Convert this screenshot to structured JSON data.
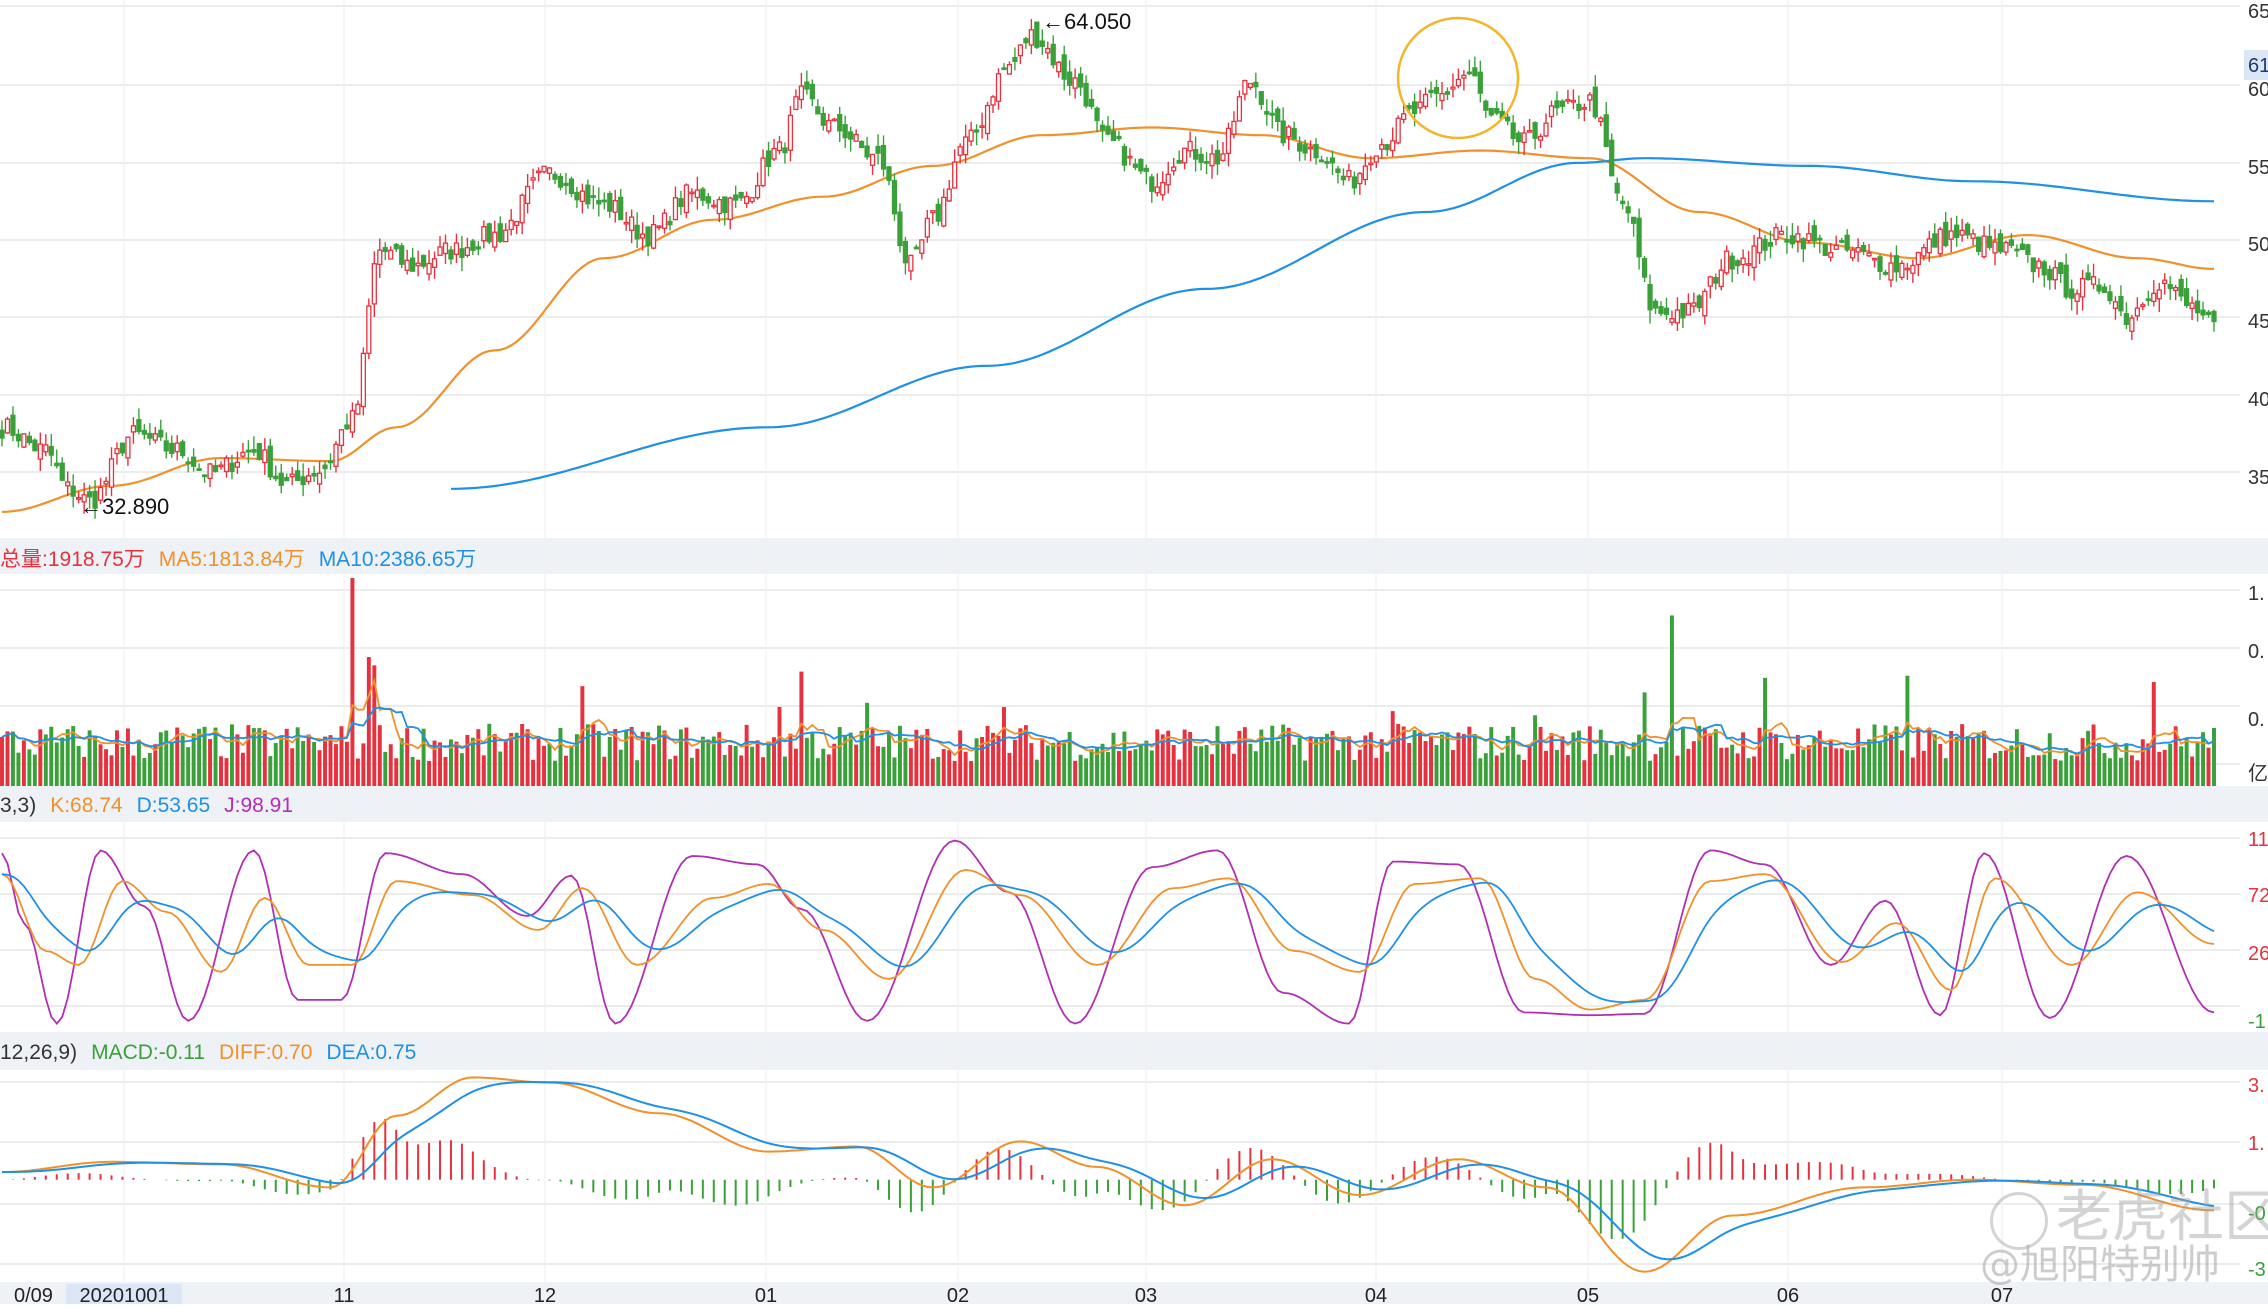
{
  "colors": {
    "up": "#e5323e",
    "down": "#3aa13a",
    "ma_orange": "#f0912b",
    "ma_blue": "#1e90e6",
    "j_purple": "#b12fb3",
    "grid": "#e6e6e6",
    "band": "#eef1f5",
    "circle": "#f3b52a",
    "date_highlight": "#dbe7f7"
  },
  "price_panel": {
    "high_label": "←64.050",
    "low_label": "←32.890",
    "axis_ticks": [
      "65",
      "60",
      "55",
      "50",
      "45",
      "40",
      "35"
    ],
    "current_price_tag": "61"
  },
  "volume_panel": {
    "legend": [
      {
        "text": "总量:1918.75万",
        "color": "#e5323e"
      },
      {
        "text": "MA5:1813.84万",
        "color": "#f0912b"
      },
      {
        "text": "MA10:2386.65万",
        "color": "#1e90e6"
      }
    ],
    "axis_ticks": [
      "1.",
      "0.",
      "0.",
      "亿"
    ]
  },
  "kdj_panel": {
    "legend": [
      {
        "text": "3,3)",
        "color": "#333333"
      },
      {
        "text": "K:68.74",
        "color": "#f0912b"
      },
      {
        "text": "D:53.65",
        "color": "#1e90e6"
      },
      {
        "text": "J:98.91",
        "color": "#b12fb3"
      }
    ],
    "axis_ticks": [
      "11",
      "72",
      "26",
      "-1"
    ]
  },
  "macd_panel": {
    "legend": [
      {
        "text": "12,26,9)",
        "color": "#333333"
      },
      {
        "text": "MACD:-0.11",
        "color": "#3aa13a"
      },
      {
        "text": "DIFF:0.70",
        "color": "#f0912b"
      },
      {
        "text": "DEA:0.75",
        "color": "#1e90e6"
      }
    ],
    "axis_ticks": [
      "3.",
      "1.",
      "-0",
      "-3"
    ]
  },
  "x_axis": {
    "labels": [
      "0/09",
      "20201001",
      "11",
      "12",
      "01",
      "02",
      "03",
      "04",
      "05",
      "06",
      "07"
    ]
  },
  "watermark": {
    "brand": "老虎社区",
    "author": "@旭阳特别帅"
  },
  "chart_data": {
    "type": "candlestick",
    "title": "",
    "x_labels": [
      "0/09",
      "20201001",
      "11",
      "12",
      "01",
      "02",
      "03",
      "04",
      "05",
      "06",
      "07"
    ],
    "y_ticks": [
      65,
      60,
      55,
      50,
      45,
      40,
      35
    ],
    "price_range": [
      30.8,
      65.4
    ],
    "annotations": [
      {
        "text": "←64.050",
        "value": 64.05,
        "type": "high"
      },
      {
        "text": "←32.890",
        "value": 32.89,
        "type": "low"
      }
    ],
    "price_anchors": [
      [
        0,
        38.0
      ],
      [
        8,
        36.5
      ],
      [
        12,
        34.0
      ],
      [
        16,
        33.2
      ],
      [
        24,
        37.5
      ],
      [
        32,
        36.5
      ],
      [
        38,
        35.0
      ],
      [
        46,
        36.5
      ],
      [
        52,
        34.3
      ],
      [
        58,
        35.2
      ],
      [
        64,
        38.5
      ],
      [
        69,
        49.5
      ],
      [
        75,
        48.5
      ],
      [
        82,
        49.5
      ],
      [
        90,
        50.5
      ],
      [
        100,
        54.5
      ],
      [
        110,
        52.5
      ],
      [
        118,
        50.5
      ],
      [
        126,
        53.2
      ],
      [
        134,
        52.5
      ],
      [
        142,
        56.0
      ],
      [
        146,
        59.5
      ],
      [
        152,
        57.5
      ],
      [
        160,
        55.5
      ],
      [
        166,
        48.5
      ],
      [
        170,
        51.5
      ],
      [
        176,
        56.5
      ],
      [
        184,
        61.5
      ],
      [
        188,
        63.5
      ],
      [
        196,
        60.5
      ],
      [
        202,
        56.5
      ],
      [
        210,
        54.0
      ],
      [
        216,
        56.0
      ],
      [
        222,
        55.5
      ],
      [
        228,
        60.5
      ],
      [
        234,
        57.0
      ],
      [
        240,
        56.0
      ],
      [
        246,
        54.0
      ],
      [
        252,
        56.5
      ],
      [
        258,
        58.5
      ],
      [
        262,
        59.5
      ],
      [
        268,
        61.0
      ],
      [
        272,
        58.0
      ],
      [
        278,
        56.5
      ],
      [
        284,
        58.5
      ],
      [
        290,
        59.2
      ],
      [
        296,
        52.5
      ],
      [
        302,
        45.5
      ],
      [
        308,
        45.5
      ],
      [
        316,
        49.0
      ],
      [
        326,
        50.5
      ],
      [
        336,
        49.5
      ],
      [
        346,
        48.5
      ],
      [
        356,
        50.5
      ],
      [
        366,
        49.5
      ],
      [
        372,
        48.5
      ],
      [
        378,
        47.0
      ],
      [
        384,
        47.2
      ],
      [
        388,
        45.2
      ],
      [
        394,
        47.5
      ],
      [
        400,
        45.8
      ],
      [
        404,
        44.5
      ]
    ],
    "ma_orange_anchors": [
      [
        0,
        32.5
      ],
      [
        20,
        34.2
      ],
      [
        40,
        36.0
      ],
      [
        60,
        35.8
      ],
      [
        72,
        38.0
      ],
      [
        90,
        43.0
      ],
      [
        110,
        49.0
      ],
      [
        130,
        51.5
      ],
      [
        150,
        53.0
      ],
      [
        170,
        55.0
      ],
      [
        190,
        57.0
      ],
      [
        210,
        57.5
      ],
      [
        230,
        57.0
      ],
      [
        250,
        55.5
      ],
      [
        270,
        56.0
      ],
      [
        290,
        55.5
      ],
      [
        310,
        52.0
      ],
      [
        330,
        50.0
      ],
      [
        350,
        49.0
      ],
      [
        370,
        50.5
      ],
      [
        390,
        49.0
      ],
      [
        404,
        48.3
      ]
    ],
    "ma_blue_anchors": [
      [
        82,
        34.0
      ],
      [
        140,
        38.0
      ],
      [
        180,
        42.0
      ],
      [
        220,
        47.0
      ],
      [
        260,
        52.0
      ],
      [
        288,
        55.2
      ],
      [
        300,
        55.5
      ],
      [
        330,
        55.0
      ],
      [
        360,
        54.0
      ],
      [
        404,
        52.7
      ]
    ],
    "volume_legend": {
      "total": "1918.75万",
      "ma5": "1813.84万",
      "ma10": "2386.65万"
    },
    "kdj": {
      "K": 68.74,
      "D": 53.65,
      "J": 98.91,
      "axis_ticks": [
        "11",
        "72",
        "26",
        "-1"
      ]
    },
    "macd": {
      "MACD": -0.11,
      "DIFF": 0.7,
      "DEA": 0.75,
      "axis_ticks": [
        "3.",
        "1.",
        "-0",
        "-3"
      ]
    },
    "macd_diff_anchors": [
      [
        0,
        0.3
      ],
      [
        20,
        0.7
      ],
      [
        40,
        0.6
      ],
      [
        60,
        -0.3
      ],
      [
        72,
        2.5
      ],
      [
        86,
        4.0
      ],
      [
        100,
        3.8
      ],
      [
        120,
        2.6
      ],
      [
        140,
        1.1
      ],
      [
        156,
        1.3
      ],
      [
        170,
        -0.3
      ],
      [
        186,
        1.5
      ],
      [
        200,
        0.5
      ],
      [
        216,
        -1.0
      ],
      [
        232,
        0.8
      ],
      [
        248,
        -0.6
      ],
      [
        266,
        0.8
      ],
      [
        282,
        -0.3
      ],
      [
        300,
        -3.6
      ],
      [
        316,
        -1.4
      ],
      [
        340,
        -0.3
      ],
      [
        360,
        0.0
      ],
      [
        380,
        -0.2
      ],
      [
        404,
        -1.2
      ]
    ],
    "kdj_k_anchors": [
      [
        0,
        95
      ],
      [
        8,
        40
      ],
      [
        14,
        30
      ],
      [
        22,
        90
      ],
      [
        30,
        68
      ],
      [
        40,
        25
      ],
      [
        48,
        78
      ],
      [
        56,
        30
      ],
      [
        64,
        30
      ],
      [
        72,
        90
      ],
      [
        86,
        80
      ],
      [
        98,
        55
      ],
      [
        106,
        85
      ],
      [
        116,
        30
      ],
      [
        130,
        78
      ],
      [
        140,
        88
      ],
      [
        150,
        55
      ],
      [
        162,
        20
      ],
      [
        176,
        98
      ],
      [
        186,
        80
      ],
      [
        200,
        30
      ],
      [
        214,
        85
      ],
      [
        224,
        92
      ],
      [
        236,
        40
      ],
      [
        248,
        25
      ],
      [
        258,
        88
      ],
      [
        270,
        92
      ],
      [
        280,
        20
      ],
      [
        290,
        -2
      ],
      [
        300,
        5
      ],
      [
        312,
        90
      ],
      [
        322,
        95
      ],
      [
        336,
        32
      ],
      [
        346,
        60
      ],
      [
        356,
        12
      ],
      [
        364,
        92
      ],
      [
        378,
        30
      ],
      [
        390,
        82
      ],
      [
        404,
        45
      ]
    ],
    "kdj_j_anchors": [
      [
        0,
        110
      ],
      [
        4,
        60
      ],
      [
        10,
        -12
      ],
      [
        18,
        112
      ],
      [
        26,
        72
      ],
      [
        34,
        -10
      ],
      [
        46,
        112
      ],
      [
        54,
        5
      ],
      [
        62,
        5
      ],
      [
        70,
        110
      ],
      [
        84,
        95
      ],
      [
        96,
        65
      ],
      [
        104,
        94
      ],
      [
        112,
        -12
      ],
      [
        126,
        108
      ],
      [
        138,
        102
      ],
      [
        146,
        70
      ],
      [
        158,
        -10
      ],
      [
        174,
        119
      ],
      [
        184,
        82
      ],
      [
        196,
        -12
      ],
      [
        210,
        100
      ],
      [
        222,
        112
      ],
      [
        234,
        10
      ],
      [
        246,
        -12
      ],
      [
        254,
        104
      ],
      [
        266,
        102
      ],
      [
        278,
        -4
      ],
      [
        290,
        -6
      ],
      [
        300,
        -5
      ],
      [
        312,
        112
      ],
      [
        322,
        102
      ],
      [
        334,
        30
      ],
      [
        344,
        76
      ],
      [
        354,
        -6
      ],
      [
        362,
        110
      ],
      [
        374,
        -8
      ],
      [
        388,
        108
      ],
      [
        404,
        -4
      ]
    ]
  }
}
